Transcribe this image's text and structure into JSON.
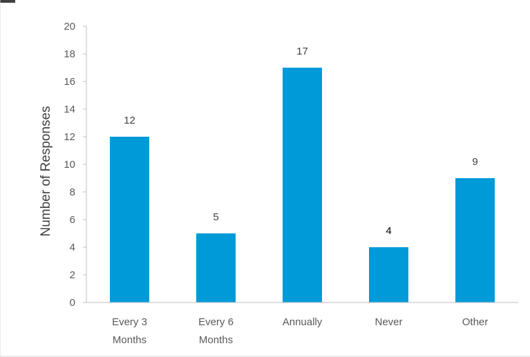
{
  "chart_data": {
    "type": "bar",
    "title": "",
    "xlabel": "",
    "ylabel": "Number of Responses",
    "ylim": [
      0,
      20
    ],
    "yticks": [
      0,
      2,
      4,
      6,
      8,
      10,
      12,
      14,
      16,
      18,
      20
    ],
    "categories": [
      [
        "Every 3",
        "Months"
      ],
      [
        "Every 6",
        "Months"
      ],
      [
        "Annually"
      ],
      [
        "Never"
      ],
      [
        "Other"
      ]
    ],
    "values": [
      12,
      5,
      17,
      4,
      9
    ],
    "data_labels": [
      "12",
      "5",
      "17",
      "4",
      "9"
    ],
    "bar_color": "#009ad9",
    "grid": false,
    "legend": "none"
  }
}
